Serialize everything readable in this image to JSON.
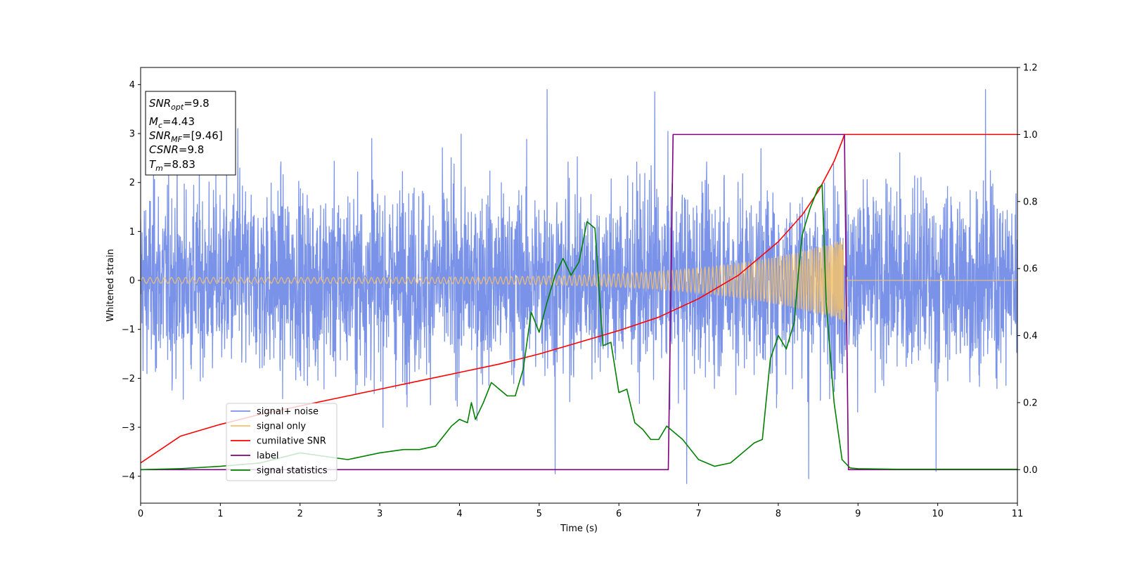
{
  "chart_data": {
    "type": "line",
    "xlabel": "Time (s)",
    "ylabel": "Whitened strain",
    "xlim": [
      0,
      11
    ],
    "ylim_left": [
      -4.55,
      4.35
    ],
    "ylim_right": [
      -0.1,
      1.2
    ],
    "x_ticks": [
      0,
      1,
      2,
      3,
      4,
      5,
      6,
      7,
      8,
      9,
      10,
      11
    ],
    "y_ticks_left": [
      -4,
      -3,
      -2,
      -1,
      0,
      1,
      2,
      3,
      4
    ],
    "y_ticks_right": [
      0.0,
      0.2,
      0.4,
      0.6,
      0.8,
      1.0,
      1.2
    ],
    "y_ticks_right_labels": [
      "0.0",
      "0.2",
      "0.4",
      "0.6",
      "0.8",
      "1.0",
      "1.2"
    ],
    "grid": false,
    "legend_position": "lower-left",
    "info_box": {
      "lines": [
        {
          "base": "SNR",
          "sub": "opt",
          "value": "=9.8"
        },
        {
          "base": "M",
          "sub": "c",
          "value": "=4.43"
        },
        {
          "base": "SNR",
          "sub": "MF",
          "value": "=[9.46]"
        },
        {
          "base": "CSNR",
          "sub": "",
          "value": "=9.8"
        },
        {
          "base": "T",
          "sub": "m",
          "value": "=8.83"
        }
      ]
    },
    "series": [
      {
        "name": "signal+ noise",
        "axis": "left",
        "color": "#7a93e8",
        "kind": "noise",
        "noise_sigma": 0.95,
        "notable_peaks": [
          [
            1.22,
            3.1
          ],
          [
            2.9,
            2.9
          ],
          [
            5.1,
            3.9
          ],
          [
            6.45,
            3.85
          ],
          [
            8.38,
            3.95
          ],
          [
            10.6,
            3.9
          ],
          [
            5.2,
            -3.95
          ],
          [
            6.85,
            -4.15
          ],
          [
            8.38,
            -4.05
          ],
          [
            9.98,
            -3.9
          ]
        ]
      },
      {
        "name": "signal only",
        "axis": "left",
        "color": "#f5c26b",
        "kind": "chirp",
        "chirp_end": 8.83,
        "amplitude_start": 0.06,
        "amplitude_end": 0.85
      },
      {
        "name": "cumilative SNR",
        "axis": "right",
        "color": "#ff0000",
        "kind": "line",
        "x": [
          0,
          0.5,
          1,
          1.5,
          2,
          2.5,
          3,
          3.5,
          4,
          4.5,
          5,
          5.5,
          6,
          6.5,
          7,
          7.5,
          8,
          8.3,
          8.5,
          8.7,
          8.8,
          8.83,
          9,
          10,
          11
        ],
        "y": [
          0.02,
          0.1,
          0.135,
          0.165,
          0.19,
          0.215,
          0.24,
          0.265,
          0.29,
          0.315,
          0.345,
          0.38,
          0.415,
          0.455,
          0.51,
          0.58,
          0.68,
          0.76,
          0.83,
          0.92,
          0.98,
          1.0,
          1.0,
          1.0,
          1.0
        ]
      },
      {
        "name": "label",
        "axis": "right",
        "color": "#800080",
        "kind": "line",
        "x": [
          0,
          6.62,
          6.68,
          8.83,
          8.88,
          11
        ],
        "y": [
          0,
          0,
          1,
          1,
          0,
          0
        ]
      },
      {
        "name": "signal statistics",
        "axis": "right",
        "color": "#008000",
        "kind": "line",
        "x": [
          0,
          0.5,
          1.0,
          1.5,
          2.0,
          2.3,
          2.6,
          3.0,
          3.3,
          3.5,
          3.7,
          3.9,
          4.0,
          4.1,
          4.15,
          4.2,
          4.3,
          4.4,
          4.5,
          4.6,
          4.7,
          4.8,
          4.9,
          5.0,
          5.1,
          5.2,
          5.3,
          5.4,
          5.5,
          5.6,
          5.7,
          5.8,
          5.9,
          6.0,
          6.1,
          6.2,
          6.3,
          6.4,
          6.5,
          6.6,
          6.7,
          6.8,
          6.9,
          7.0,
          7.2,
          7.4,
          7.5,
          7.6,
          7.7,
          7.8,
          7.9,
          8.0,
          8.1,
          8.2,
          8.25,
          8.3,
          8.4,
          8.5,
          8.55,
          8.6,
          8.7,
          8.8,
          8.9,
          9.0,
          9.5,
          10,
          11
        ],
        "y": [
          0.0,
          0.003,
          0.01,
          0.02,
          0.05,
          0.04,
          0.03,
          0.05,
          0.06,
          0.06,
          0.07,
          0.13,
          0.15,
          0.14,
          0.2,
          0.15,
          0.2,
          0.26,
          0.24,
          0.22,
          0.22,
          0.3,
          0.47,
          0.41,
          0.5,
          0.58,
          0.63,
          0.58,
          0.62,
          0.74,
          0.72,
          0.37,
          0.38,
          0.23,
          0.24,
          0.14,
          0.12,
          0.09,
          0.09,
          0.13,
          0.11,
          0.09,
          0.06,
          0.03,
          0.01,
          0.02,
          0.04,
          0.06,
          0.08,
          0.09,
          0.33,
          0.4,
          0.36,
          0.44,
          0.58,
          0.7,
          0.78,
          0.84,
          0.85,
          0.5,
          0.2,
          0.03,
          0.005,
          0.003,
          0.001,
          0.001,
          0.001
        ]
      }
    ]
  }
}
